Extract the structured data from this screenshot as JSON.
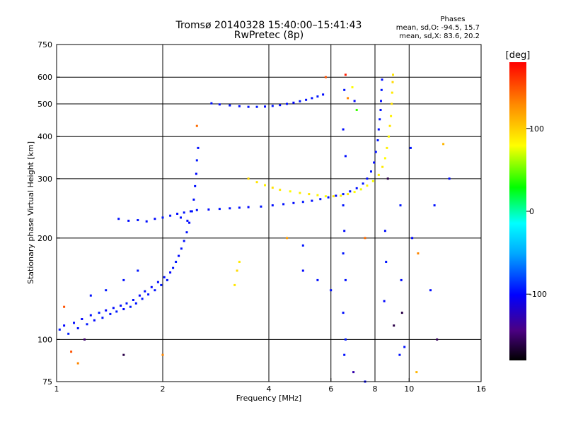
{
  "chart_data": {
    "type": "scatter",
    "title": "Tromsø 20140328 15:40:00–15:41:43",
    "subtitle": "RwPretec (8p)",
    "phase_header": "Phases",
    "phase_stats": [
      "mean, sd,O: -94.5, 15.7",
      "mean, sd,X: 83.6, 20.2"
    ],
    "xlabel": "Frequency [MHz]",
    "ylabel": "Stationary phase Virtual Height [km]",
    "xscale": "log",
    "yscale": "log",
    "xlim": [
      1,
      16
    ],
    "ylim": [
      75,
      750
    ],
    "xticks": [
      {
        "v": 1,
        "label": "1"
      },
      {
        "v": 2,
        "label": "2"
      },
      {
        "v": 4,
        "label": "4"
      },
      {
        "v": 6,
        "label": "6"
      },
      {
        "v": 8,
        "label": "8"
      },
      {
        "v": 10,
        "label": "10"
      },
      {
        "v": 16,
        "label": "16"
      }
    ],
    "yticks": [
      {
        "v": 75,
        "label": "75"
      },
      {
        "v": 100,
        "label": "100"
      },
      {
        "v": 200,
        "label": "200"
      },
      {
        "v": 300,
        "label": "300"
      },
      {
        "v": 400,
        "label": "400"
      },
      {
        "v": 500,
        "label": "500"
      },
      {
        "v": 600,
        "label": "600"
      },
      {
        "v": 750,
        "label": "750"
      }
    ],
    "grid": true,
    "colorbar": {
      "label": "[deg]",
      "range": [
        -180,
        180
      ],
      "ticks": [
        {
          "v": 100,
          "label": "100"
        },
        {
          "v": 0,
          "label": "0"
        },
        {
          "v": -100,
          "label": "-100"
        }
      ]
    },
    "series": [
      {
        "points": [
          [
            1.02,
            107,
            -95
          ],
          [
            1.05,
            110,
            -100
          ],
          [
            1.08,
            104,
            -92
          ],
          [
            1.12,
            112,
            -98
          ],
          [
            1.15,
            108,
            -96
          ],
          [
            1.18,
            115,
            -101
          ],
          [
            1.22,
            111,
            -94
          ],
          [
            1.25,
            118,
            -97
          ],
          [
            1.28,
            114,
            -99
          ],
          [
            1.32,
            120,
            -93
          ],
          [
            1.35,
            116,
            -95
          ],
          [
            1.38,
            122,
            -100
          ],
          [
            1.42,
            119,
            -96
          ],
          [
            1.45,
            124,
            -98
          ],
          [
            1.48,
            121,
            -94
          ],
          [
            1.52,
            126,
            -97
          ],
          [
            1.55,
            123,
            -99
          ],
          [
            1.58,
            128,
            -95
          ],
          [
            1.62,
            125,
            -93
          ],
          [
            1.65,
            131,
            -98
          ],
          [
            1.68,
            128,
            -96
          ],
          [
            1.72,
            135,
            -100
          ],
          [
            1.75,
            132,
            -94
          ],
          [
            1.78,
            139,
            -97
          ],
          [
            1.82,
            136,
            -95
          ],
          [
            1.86,
            143,
            -99
          ],
          [
            1.9,
            140,
            -96
          ],
          [
            1.94,
            148,
            -98
          ],
          [
            1.98,
            145,
            -94
          ],
          [
            2.02,
            153,
            -97
          ],
          [
            2.06,
            150,
            -95
          ],
          [
            2.1,
            158,
            -99
          ],
          [
            2.14,
            163,
            -96
          ],
          [
            2.18,
            170,
            -94
          ],
          [
            2.22,
            177,
            -98
          ],
          [
            2.26,
            186,
            -95
          ],
          [
            2.3,
            196,
            -97
          ],
          [
            2.34,
            208,
            -96
          ],
          [
            2.38,
            222,
            -99
          ],
          [
            2.42,
            240,
            -95
          ],
          [
            2.45,
            260,
            -97
          ],
          [
            2.47,
            285,
            -96
          ],
          [
            2.49,
            310,
            -98
          ],
          [
            2.5,
            340,
            -94
          ],
          [
            2.52,
            370,
            -97
          ],
          [
            1.25,
            135,
            -96
          ],
          [
            1.38,
            140,
            -94
          ],
          [
            1.55,
            150,
            -97
          ],
          [
            1.7,
            160,
            -95
          ],
          [
            2.25,
            230,
            -96
          ],
          [
            2.35,
            225,
            -98
          ]
        ]
      },
      {
        "points": [
          [
            1.5,
            228,
            -96
          ],
          [
            1.6,
            225,
            -98
          ],
          [
            1.7,
            226,
            -95
          ],
          [
            1.8,
            224,
            -97
          ],
          [
            1.9,
            228,
            -99
          ],
          [
            2.0,
            230,
            -94
          ],
          [
            2.1,
            233,
            -96
          ],
          [
            2.2,
            236,
            -98
          ],
          [
            2.3,
            238,
            -95
          ],
          [
            2.4,
            240,
            -97
          ],
          [
            2.5,
            242,
            -96
          ],
          [
            2.7,
            243,
            -98
          ],
          [
            2.9,
            244,
            -95
          ],
          [
            3.1,
            245,
            -97
          ],
          [
            3.3,
            246,
            -96
          ],
          [
            3.5,
            247,
            -99
          ],
          [
            3.8,
            248,
            -95
          ],
          [
            4.1,
            250,
            -97
          ],
          [
            4.4,
            252,
            -96
          ],
          [
            4.7,
            254,
            -98
          ],
          [
            5.0,
            256,
            -94
          ],
          [
            5.3,
            258,
            -97
          ],
          [
            5.6,
            261,
            -95
          ],
          [
            5.9,
            264,
            -96
          ],
          [
            6.2,
            267,
            -98
          ],
          [
            6.5,
            270,
            -95
          ],
          [
            6.8,
            275,
            -97
          ],
          [
            7.1,
            281,
            -96
          ],
          [
            7.4,
            290,
            -94
          ],
          [
            7.6,
            300,
            -97
          ],
          [
            7.8,
            315,
            -95
          ],
          [
            7.95,
            335,
            -98
          ],
          [
            8.05,
            360,
            -96
          ],
          [
            8.15,
            390,
            -94
          ],
          [
            8.2,
            420,
            -97
          ],
          [
            8.25,
            450,
            -95
          ],
          [
            8.3,
            480,
            -96
          ],
          [
            8.32,
            510,
            -98
          ],
          [
            8.35,
            550,
            -95
          ],
          [
            8.38,
            590,
            -97
          ]
        ]
      },
      {
        "points": [
          [
            3.5,
            300,
            95
          ],
          [
            3.7,
            293,
            90
          ],
          [
            3.9,
            287,
            85
          ],
          [
            4.1,
            282,
            92
          ],
          [
            4.3,
            278,
            88
          ],
          [
            4.6,
            275,
            80
          ],
          [
            4.9,
            272,
            86
          ],
          [
            5.2,
            270,
            90
          ],
          [
            5.5,
            268,
            84
          ],
          [
            5.8,
            266,
            78
          ],
          [
            6.1,
            266,
            88
          ],
          [
            6.4,
            267,
            82
          ],
          [
            6.7,
            270,
            86
          ],
          [
            7.0,
            274,
            80
          ],
          [
            7.3,
            279,
            76
          ],
          [
            7.6,
            286,
            82
          ],
          [
            7.9,
            295,
            78
          ],
          [
            8.2,
            308,
            84
          ],
          [
            8.4,
            325,
            88
          ],
          [
            8.55,
            345,
            80
          ],
          [
            8.65,
            370,
            86
          ],
          [
            8.75,
            400,
            82
          ],
          [
            8.82,
            430,
            90
          ],
          [
            8.88,
            460,
            85
          ],
          [
            8.92,
            500,
            92
          ],
          [
            8.95,
            540,
            88
          ],
          [
            8.98,
            580,
            95
          ],
          [
            9.0,
            610,
            90
          ]
        ]
      },
      {
        "points": [
          [
            2.75,
            502,
            -96
          ],
          [
            2.9,
            498,
            -98
          ],
          [
            3.1,
            495,
            -95
          ],
          [
            3.3,
            492,
            -97
          ],
          [
            3.5,
            490,
            -96
          ],
          [
            3.7,
            490,
            -94
          ],
          [
            3.9,
            491,
            -98
          ],
          [
            4.1,
            493,
            -95
          ],
          [
            4.3,
            496,
            -97
          ],
          [
            4.5,
            500,
            -96
          ],
          [
            4.7,
            504,
            -99
          ],
          [
            4.9,
            509,
            -95
          ],
          [
            5.1,
            514,
            -97
          ],
          [
            5.3,
            520,
            -96
          ],
          [
            5.5,
            526,
            -94
          ],
          [
            5.7,
            533,
            -98
          ]
        ]
      },
      {
        "points": [
          [
            6.5,
            180,
            -95
          ],
          [
            6.55,
            210,
            -98
          ],
          [
            6.6,
            150,
            -96
          ],
          [
            6.5,
            120,
            -97
          ],
          [
            6.6,
            100,
            -94
          ],
          [
            6.55,
            90,
            -96
          ],
          [
            6.5,
            250,
            -95
          ],
          [
            6.6,
            350,
            -97
          ],
          [
            6.55,
            550,
            -96
          ],
          [
            6.5,
            420,
            -98
          ],
          [
            8.5,
            130,
            -100
          ],
          [
            8.6,
            170,
            -95
          ],
          [
            8.55,
            210,
            -97
          ],
          [
            9.4,
            90,
            -96
          ],
          [
            9.5,
            150,
            -98
          ],
          [
            9.45,
            250,
            -94
          ],
          [
            9.55,
            120,
            -160
          ],
          [
            9.7,
            95,
            -96
          ],
          [
            10.2,
            200,
            -98
          ],
          [
            10.1,
            370,
            -95
          ],
          [
            7.1,
            480,
            40
          ],
          [
            7.0,
            510,
            -100
          ],
          [
            6.9,
            560,
            80
          ],
          [
            6.7,
            520,
            130
          ],
          [
            5.8,
            600,
            150
          ],
          [
            6.6,
            610,
            170
          ],
          [
            3.2,
            145,
            90
          ],
          [
            3.25,
            160,
            95
          ],
          [
            3.3,
            170,
            88
          ],
          [
            1.2,
            100,
            -150
          ],
          [
            1.1,
            92,
            150
          ],
          [
            1.55,
            90,
            -160
          ],
          [
            2.0,
            90,
            130
          ],
          [
            2.5,
            430,
            140
          ],
          [
            4.5,
            200,
            120
          ],
          [
            5.0,
            160,
            -100
          ],
          [
            5.0,
            190,
            -95
          ],
          [
            5.5,
            150,
            -96
          ],
          [
            6.0,
            140,
            -97
          ],
          [
            7.5,
            200,
            140
          ],
          [
            8.7,
            300,
            -160
          ],
          [
            12.0,
            100,
            -155
          ],
          [
            12.5,
            380,
            110
          ],
          [
            13.0,
            300,
            -97
          ],
          [
            11.5,
            140,
            -98
          ],
          [
            11.8,
            250,
            -96
          ],
          [
            10.6,
            180,
            130
          ],
          [
            10.5,
            80,
            110
          ],
          [
            6.95,
            80,
            -130
          ],
          [
            9.05,
            110,
            -160
          ],
          [
            1.05,
            125,
            150
          ],
          [
            1.15,
            85,
            130
          ],
          [
            7.5,
            75,
            -100
          ]
        ]
      }
    ]
  }
}
